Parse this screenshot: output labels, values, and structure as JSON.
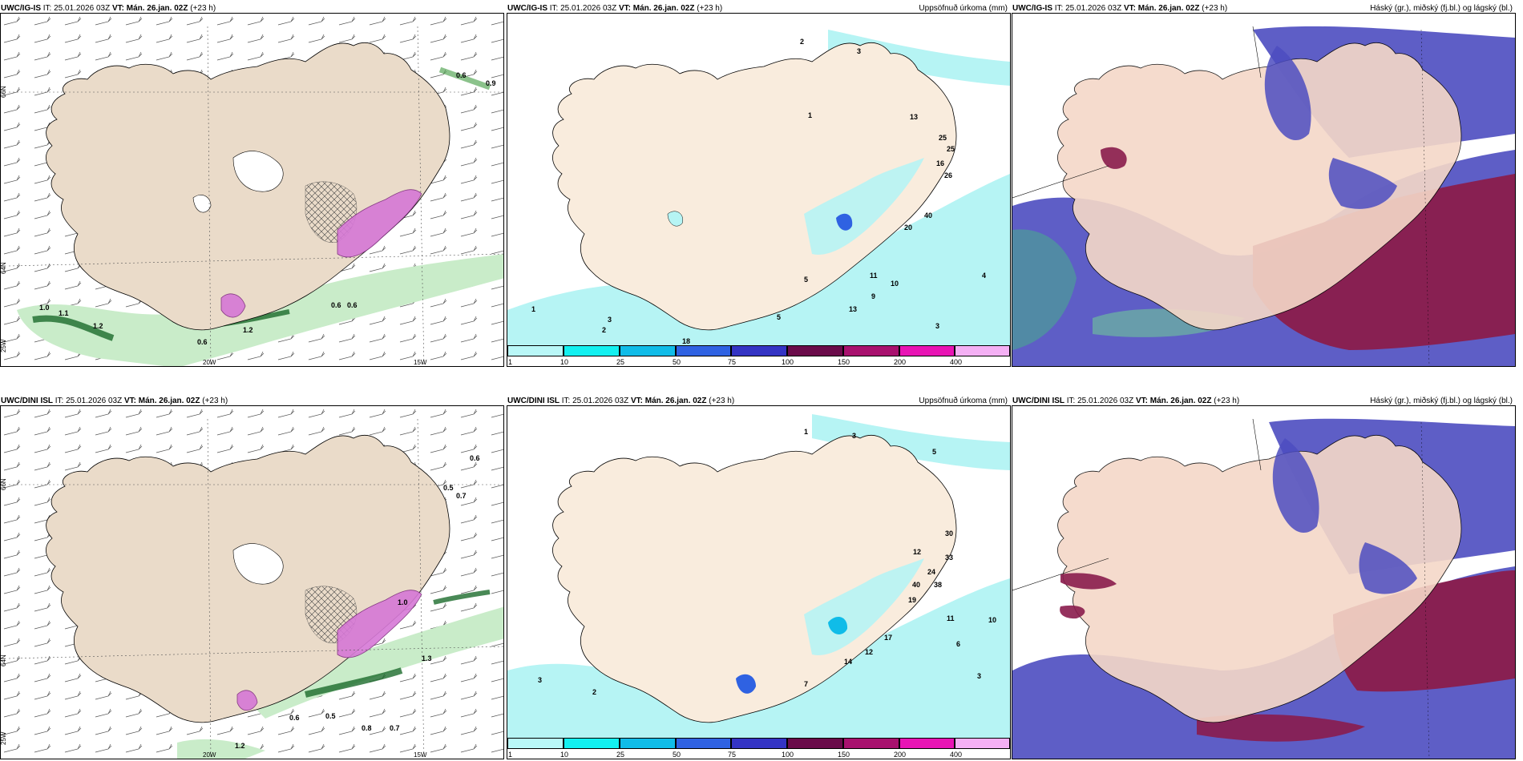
{
  "rows": [
    {
      "model": "UWC/IG-IS",
      "it": "IT: 25.01.2026 03Z",
      "vt_label": "VT:",
      "vt_value": "Mán. 26.jan. 02Z",
      "lead": "(+23 h)",
      "precip_title": "Uppsöfnuð úrkoma (mm)",
      "cloud_title": "Háský (gr.), miðský (fj.bl.) og lágský (bl.)",
      "wind_values": [
        "1.0",
        "1.1",
        "1.2",
        "1.2",
        "0.6",
        "0.6",
        "0.6",
        "0.6",
        "0.9"
      ],
      "precip_values": [
        "1",
        "2",
        "2",
        "3",
        "3",
        "4",
        "1",
        "5",
        "10",
        "13",
        "25",
        "25",
        "20",
        "40",
        "26",
        "16",
        "11",
        "9",
        "13",
        "5",
        "18",
        "3"
      ]
    },
    {
      "model": "UWC/DINI ISL",
      "it": "IT: 25.01.2026 03Z",
      "vt_label": "VT:",
      "vt_value": "Mán. 26.jan. 02Z",
      "lead": "(+23 h)",
      "precip_title": "Uppsöfnuð úrkoma (mm)",
      "cloud_title": "Háský (gr.), miðský (fj.bl.) og lágský (bl.)",
      "wind_values": [
        "0.6",
        "0.5",
        "0.7",
        "1.0",
        "1.3",
        "0.6",
        "0.5",
        "0.8",
        "0.7",
        "1.2"
      ],
      "precip_values": [
        "3",
        "2",
        "1",
        "3",
        "5",
        "12",
        "30",
        "33",
        "24",
        "38",
        "40",
        "19",
        "17",
        "14",
        "12",
        "7",
        "11",
        "6",
        "10",
        "3"
      ]
    }
  ],
  "axis_labels": {
    "lat_top": "66N",
    "lat_mid": "64N",
    "lat_bottom": "25W",
    "lon_left": "20W",
    "lon_right": "15W"
  },
  "legend": {
    "ticks": [
      "1",
      "10",
      "25",
      "50",
      "75",
      "100",
      "150",
      "200",
      "400"
    ],
    "colors": [
      "#b9f7f7",
      "#13f0f0",
      "#10bce8",
      "#2f62e2",
      "#3434c4",
      "#6a0b4a",
      "#a8116e",
      "#e814b4",
      "#f4b0f4"
    ]
  },
  "colors": {
    "land": "#f7ecdf",
    "land_terrain": "#e4d3c1",
    "precip_light": "#b6f4f4",
    "green_precip": "#a6e3a6",
    "high_cloud": "#4c4cc0",
    "mid_cloud": "#8a1c4c"
  }
}
